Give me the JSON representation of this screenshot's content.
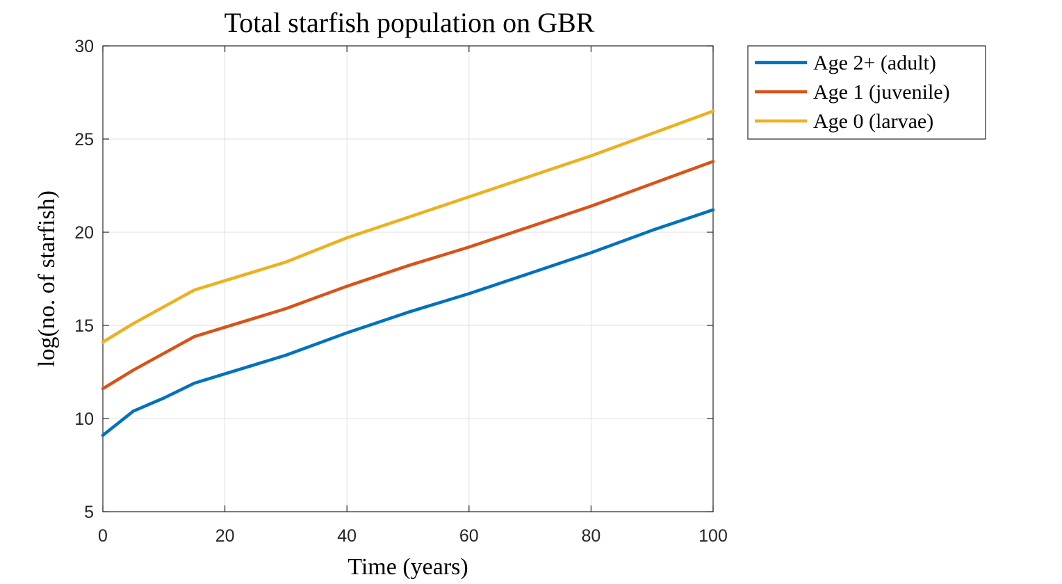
{
  "chart_data": {
    "type": "line",
    "title": "Total starfish population on GBR",
    "xlabel": "Time (years)",
    "ylabel": "log(no. of starfish)",
    "xlim": [
      0,
      100
    ],
    "ylim": [
      5,
      30
    ],
    "xticks": [
      0,
      20,
      40,
      60,
      80,
      100
    ],
    "yticks": [
      5,
      10,
      15,
      20,
      25,
      30
    ],
    "xtick_labels": [
      "0",
      "20",
      "40",
      "60",
      "80",
      "100"
    ],
    "ytick_labels": [
      "5",
      "10",
      "15",
      "20",
      "25",
      "30"
    ],
    "grid": true,
    "legend_position": "outside top-right",
    "x": [
      0,
      5,
      10,
      15,
      20,
      25,
      30,
      40,
      50,
      60,
      70,
      80,
      90,
      100
    ],
    "series": [
      {
        "name": "Age 2+ (adult)",
        "color": "#0072BD",
        "values": [
          9.1,
          10.4,
          11.1,
          11.9,
          12.4,
          12.9,
          13.4,
          14.6,
          15.7,
          16.7,
          17.8,
          18.9,
          20.1,
          21.2
        ]
      },
      {
        "name": "Age 1 (juvenile)",
        "color": "#D95319",
        "values": [
          11.6,
          12.6,
          13.5,
          14.4,
          14.9,
          15.4,
          15.9,
          17.1,
          18.2,
          19.2,
          20.3,
          21.4,
          22.6,
          23.8
        ]
      },
      {
        "name": "Age 0 (larvae)",
        "color": "#EDB120",
        "values": [
          14.1,
          15.1,
          16.0,
          16.9,
          17.4,
          17.9,
          18.4,
          19.7,
          20.8,
          21.9,
          23.0,
          24.1,
          25.3,
          26.5
        ]
      }
    ]
  }
}
